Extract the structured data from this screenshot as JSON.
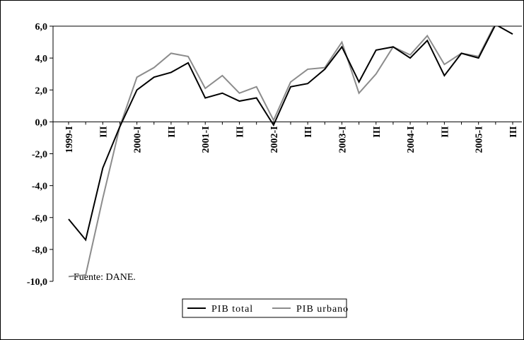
{
  "chart_data": {
    "type": "line",
    "annotation": "Fuente: DANE.",
    "categories": [
      "1999-I",
      null,
      "III",
      null,
      "2000-I",
      null,
      "III",
      null,
      "2001-I",
      null,
      "III",
      null,
      "2002-I",
      null,
      "III",
      null,
      "2003-I",
      null,
      "III",
      null,
      "2004-I",
      null,
      "III",
      null,
      "2005-I",
      null,
      "III"
    ],
    "series": [
      {
        "name": "PIB total",
        "color": "#000000",
        "values": [
          -6.1,
          -7.4,
          -2.9,
          -0.3,
          2.0,
          2.8,
          3.1,
          3.7,
          1.5,
          1.8,
          1.3,
          1.5,
          -0.2,
          2.2,
          2.4,
          3.3,
          4.7,
          2.5,
          4.5,
          4.7,
          4.0,
          5.1,
          2.9,
          4.3,
          4.0,
          6.1,
          5.5
        ]
      },
      {
        "name": "PIB urbano",
        "color": "#8c8c8c",
        "values": [
          -9.7,
          -9.6,
          -4.8,
          -0.3,
          2.8,
          3.4,
          4.3,
          4.1,
          2.1,
          2.9,
          1.8,
          2.2,
          0.1,
          2.5,
          3.3,
          3.4,
          5.0,
          1.8,
          3.0,
          4.7,
          4.2,
          5.4,
          3.6,
          4.3,
          4.1,
          6.2,
          6.3
        ]
      }
    ],
    "ylim": [
      -10,
      6
    ],
    "yticks": [
      {
        "value": 6,
        "label": "6,0"
      },
      {
        "value": 4,
        "label": "4,0"
      },
      {
        "value": 2,
        "label": "2,0"
      },
      {
        "value": 0,
        "label": "0,0"
      },
      {
        "value": -2,
        "label": "-2,0"
      },
      {
        "value": -4,
        "label": "-4,0"
      },
      {
        "value": -6,
        "label": "-6,0"
      },
      {
        "value": -8,
        "label": "-8,0"
      },
      {
        "value": -10,
        "label": "-10,0"
      }
    ]
  }
}
